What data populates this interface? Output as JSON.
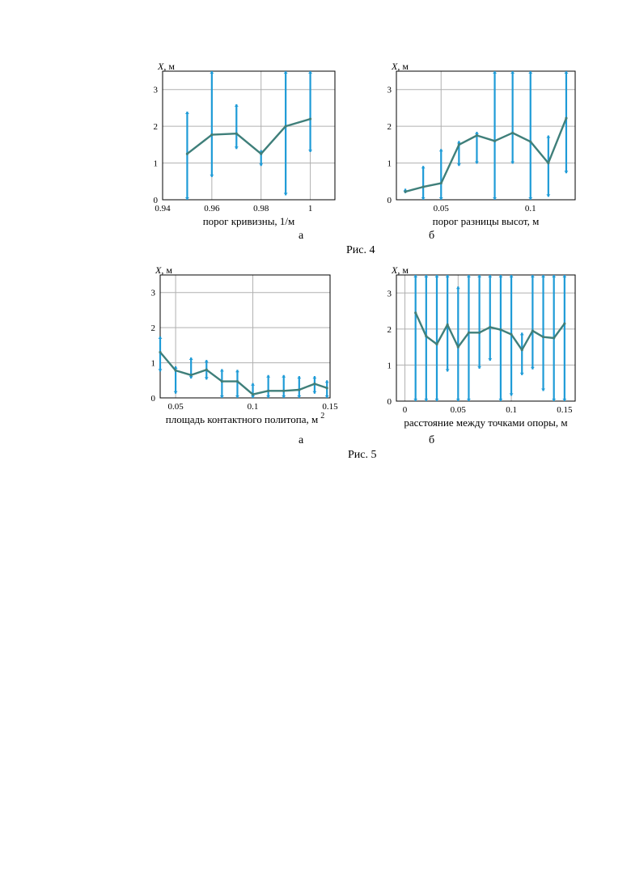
{
  "figure4": {
    "caption": "Рис. 4"
  },
  "figure5": {
    "caption": "Рис. 5"
  },
  "colors": {
    "errorbar": "#1e9bd7",
    "line": "#3f7f7a",
    "grid": "#b0b0b0",
    "frame": "#000000"
  },
  "chart_data": [
    {
      "id": "fig4a",
      "type": "line",
      "panel_label": "а",
      "ylabel_var": "X",
      "ylabel_unit": ", м",
      "xlabel": "порог кривизны, 1/м",
      "xlim": [
        0.94,
        1.01
      ],
      "ylim": [
        0,
        3.5
      ],
      "xticks": [
        0.94,
        0.96,
        0.98,
        1
      ],
      "xtick_labels": [
        "0.94",
        "0.96",
        "0.98",
        "1"
      ],
      "yticks": [
        0,
        1,
        2,
        3
      ],
      "ytick_labels": [
        "0",
        "1",
        "2",
        "3"
      ],
      "grid": true,
      "x": [
        0.95,
        0.96,
        0.97,
        0.98,
        0.99,
        1.0
      ],
      "y": [
        1.25,
        1.77,
        1.8,
        1.25,
        2.0,
        2.2
      ],
      "lower": [
        0.0,
        0.62,
        1.38,
        0.92,
        0.12,
        1.3
      ],
      "upper": [
        2.4,
        3.5,
        2.6,
        1.35,
        3.5,
        3.5
      ]
    },
    {
      "id": "fig4b",
      "type": "line",
      "panel_label": "б",
      "ylabel_var": "X",
      "ylabel_unit": ", м",
      "xlabel": "порог разницы высот, м",
      "xlim": [
        0.025,
        0.125
      ],
      "ylim": [
        0,
        3.5
      ],
      "xticks": [
        0.05,
        0.1
      ],
      "xtick_labels": [
        "0.05",
        "0.1"
      ],
      "yticks": [
        0,
        1,
        2,
        3
      ],
      "ytick_labels": [
        "0",
        "1",
        "2",
        "3"
      ],
      "grid": true,
      "x": [
        0.03,
        0.04,
        0.05,
        0.06,
        0.07,
        0.08,
        0.09,
        0.1,
        0.11,
        0.12
      ],
      "y": [
        0.22,
        0.35,
        0.45,
        1.5,
        1.75,
        1.6,
        1.82,
        1.58,
        1.0,
        2.22
      ],
      "lower": [
        0.18,
        0.0,
        0.0,
        0.92,
        0.98,
        0.0,
        0.98,
        0.0,
        0.08,
        0.72
      ],
      "upper": [
        0.3,
        0.92,
        1.38,
        1.6,
        1.85,
        3.5,
        3.5,
        3.5,
        1.75,
        3.5
      ]
    },
    {
      "id": "fig5a",
      "type": "line",
      "panel_label": "а",
      "ylabel_var": "X",
      "ylabel_unit": ", м",
      "xlabel": "площадь контактного политопа, м",
      "xlabel_sup": "2",
      "xlim": [
        0.04,
        0.15
      ],
      "ylim": [
        0,
        3.5
      ],
      "xticks": [
        0.05,
        0.1,
        0.15
      ],
      "xtick_labels": [
        "0.05",
        "0.1",
        "0.15"
      ],
      "yticks": [
        0,
        1,
        2,
        3
      ],
      "ytick_labels": [
        "0",
        "1",
        "2",
        "3"
      ],
      "grid": true,
      "x": [
        0.04,
        0.05,
        0.06,
        0.07,
        0.08,
        0.09,
        0.1,
        0.11,
        0.12,
        0.13,
        0.14,
        0.148
      ],
      "y": [
        1.3,
        0.78,
        0.65,
        0.8,
        0.47,
        0.47,
        0.1,
        0.2,
        0.2,
        0.23,
        0.4,
        0.28
      ],
      "lower": [
        0.75,
        0.12,
        0.55,
        0.52,
        0.0,
        0.0,
        0.0,
        0.0,
        0.0,
        0.0,
        0.12,
        0.0
      ],
      "upper": [
        1.75,
        0.9,
        1.15,
        1.08,
        0.82,
        0.8,
        0.42,
        0.65,
        0.65,
        0.62,
        0.62,
        0.5
      ]
    },
    {
      "id": "fig5b",
      "type": "line",
      "panel_label": "б",
      "ylabel_var": "X",
      "ylabel_unit": ", м",
      "xlabel": "расстояние между точками опоры, м",
      "xlim": [
        -0.008,
        0.16
      ],
      "ylim": [
        0,
        3.5
      ],
      "xticks": [
        0,
        0.05,
        0.1,
        0.15
      ],
      "xtick_labels": [
        "0",
        "0.05",
        "0.1",
        "0.15"
      ],
      "yticks": [
        0,
        1,
        2,
        3
      ],
      "ytick_labels": [
        "0",
        "1",
        "2",
        "3"
      ],
      "grid": true,
      "x": [
        0.01,
        0.02,
        0.03,
        0.04,
        0.05,
        0.06,
        0.07,
        0.08,
        0.09,
        0.1,
        0.11,
        0.12,
        0.13,
        0.14,
        0.15
      ],
      "y": [
        2.45,
        1.8,
        1.58,
        2.12,
        1.5,
        1.9,
        1.9,
        2.05,
        1.98,
        1.85,
        1.42,
        1.95,
        1.78,
        1.75,
        2.15
      ],
      "lower": [
        0.0,
        0.0,
        0.0,
        0.82,
        0.0,
        0.0,
        0.9,
        1.12,
        0.0,
        0.15,
        0.72,
        0.88,
        0.28,
        0.0,
        0.0
      ],
      "upper": [
        3.5,
        3.5,
        3.5,
        3.5,
        3.18,
        3.5,
        3.5,
        3.5,
        3.5,
        3.5,
        1.9,
        3.5,
        3.5,
        3.5,
        3.5
      ]
    }
  ]
}
